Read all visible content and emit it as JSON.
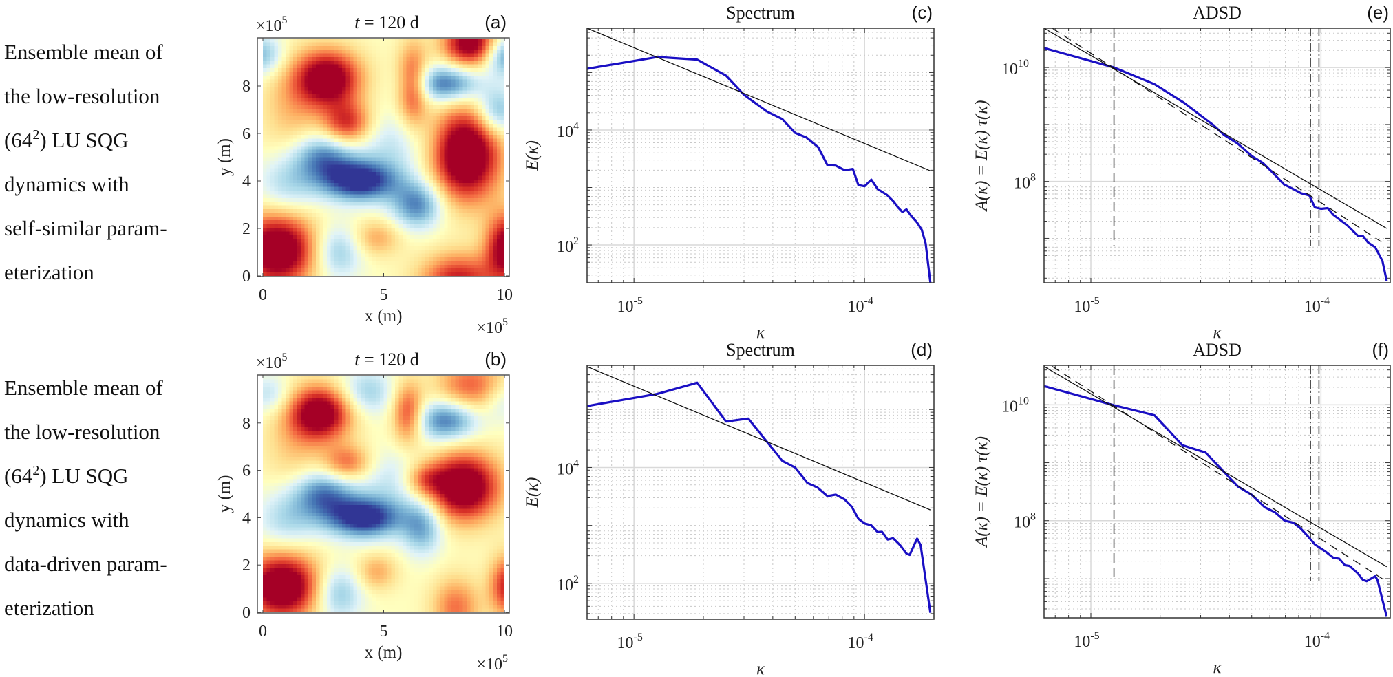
{
  "captions": {
    "top": [
      "Ensemble mean of",
      "the low-resolution",
      "(64|2|) LU SQG",
      "dynamics with",
      "self-similar param-",
      "eterization"
    ],
    "bottom": [
      "Ensemble mean of",
      "the low-resolution",
      "(64|2|) LU SQG",
      "dynamics with",
      "data-driven param-",
      "eterization"
    ]
  },
  "colors": {
    "curve": "#1a0fc4",
    "reference": "#111111",
    "grid_major": "#d9d9d9",
    "grid_minor": "#c8c8c8",
    "frame": "#333333"
  },
  "chart_data": [
    {
      "id": "a",
      "type": "heatmap",
      "panel_letter": "(a)",
      "title": "t = 120 d",
      "title_var": "t",
      "title_rest": " = 120 d",
      "xlabel": "x (m)",
      "ylabel": "y (m)",
      "x_multiplier": "×10^5",
      "y_multiplier": "×10^5",
      "xlim": [
        0,
        10
      ],
      "ylim": [
        0,
        10
      ],
      "xticks": [
        0,
        5,
        10
      ],
      "yticks": [
        0,
        2,
        4,
        6,
        8
      ],
      "grid_resolution": 64,
      "colormap": "RdYlBu (reversed): blue = low, red = high",
      "field_features": [
        {
          "x": 0.6,
          "y": 1.1,
          "amp": 1.5,
          "sx": 1.1,
          "sy": 1.1
        },
        {
          "x": 2.7,
          "y": 8.3,
          "amp": 1.4,
          "sx": 0.95,
          "sy": 0.85
        },
        {
          "x": 8.4,
          "y": 5.1,
          "amp": 1.6,
          "sx": 1.0,
          "sy": 1.35
        },
        {
          "x": 8.6,
          "y": 9.8,
          "amp": 1.3,
          "sx": 0.8,
          "sy": 0.7
        },
        {
          "x": 3.5,
          "y": 6.4,
          "amp": 0.9,
          "sx": 0.7,
          "sy": 0.65
        },
        {
          "x": 6.2,
          "y": 8.0,
          "amp": 0.9,
          "sx": 0.45,
          "sy": 1.2
        },
        {
          "x": 8.1,
          "y": -0.2,
          "amp": 1.0,
          "sx": 1.1,
          "sy": 0.8
        },
        {
          "x": 10.1,
          "y": 1.2,
          "amp": 1.3,
          "sx": 0.6,
          "sy": 1.0
        },
        {
          "x": 4.7,
          "y": 1.6,
          "amp": 0.45,
          "sx": 0.7,
          "sy": 0.55
        },
        {
          "x": 1.2,
          "y": 7.0,
          "amp": 0.35,
          "sx": 0.9,
          "sy": 1.5
        },
        {
          "x": 4.0,
          "y": 4.0,
          "amp": -1.25,
          "sx": 1.1,
          "sy": 0.6
        },
        {
          "x": 2.5,
          "y": 5.0,
          "amp": -0.8,
          "sx": 0.9,
          "sy": 0.7
        },
        {
          "x": 6.4,
          "y": 3.0,
          "amp": -0.85,
          "sx": 0.75,
          "sy": 0.7
        },
        {
          "x": 7.6,
          "y": 8.1,
          "amp": -0.95,
          "sx": 1.0,
          "sy": 0.55
        },
        {
          "x": 10.0,
          "y": 9.3,
          "amp": -0.8,
          "sx": 0.6,
          "sy": 0.6
        },
        {
          "x": 0.0,
          "y": 9.3,
          "amp": -0.6,
          "sx": 0.6,
          "sy": 0.6
        },
        {
          "x": 9.7,
          "y": 6.9,
          "amp": -0.7,
          "sx": 0.6,
          "sy": 0.7
        },
        {
          "x": 3.1,
          "y": 1.0,
          "amp": -0.55,
          "sx": 0.7,
          "sy": 0.8
        },
        {
          "x": 5.5,
          "y": 5.5,
          "amp": -0.35,
          "sx": 1.2,
          "sy": 1.0
        },
        {
          "x": 1.0,
          "y": 3.8,
          "amp": -0.45,
          "sx": 0.9,
          "sy": 0.9
        }
      ]
    },
    {
      "id": "b",
      "type": "heatmap",
      "panel_letter": "(b)",
      "title": "t = 120 d",
      "title_var": "t",
      "title_rest": " = 120 d",
      "xlabel": "x (m)",
      "ylabel": "y (m)",
      "x_multiplier": "×10^5",
      "y_multiplier": "×10^5",
      "xlim": [
        0,
        10
      ],
      "ylim": [
        0,
        10
      ],
      "xticks": [
        0,
        5,
        10
      ],
      "yticks": [
        0,
        2,
        4,
        6,
        8
      ],
      "grid_resolution": 64,
      "colormap": "RdYlBu (reversed): blue = low, red = high",
      "field_features": [
        {
          "x": 0.8,
          "y": 1.1,
          "amp": 1.5,
          "sx": 1.1,
          "sy": 1.0
        },
        {
          "x": 2.4,
          "y": 8.4,
          "amp": 1.35,
          "sx": 0.9,
          "sy": 0.8
        },
        {
          "x": 8.3,
          "y": 5.3,
          "amp": 1.5,
          "sx": 1.05,
          "sy": 1.0
        },
        {
          "x": 6.7,
          "y": 5.6,
          "amp": 0.6,
          "sx": 0.6,
          "sy": 0.5
        },
        {
          "x": 3.5,
          "y": 6.3,
          "amp": 0.7,
          "sx": 0.7,
          "sy": 0.55
        },
        {
          "x": 6.0,
          "y": 8.4,
          "amp": 0.85,
          "sx": 0.45,
          "sy": 0.9
        },
        {
          "x": 8.6,
          "y": 9.6,
          "amp": 0.7,
          "sx": 1.0,
          "sy": 0.8
        },
        {
          "x": 10.1,
          "y": 1.1,
          "amp": 0.95,
          "sx": 0.5,
          "sy": 0.9
        },
        {
          "x": 8.0,
          "y": 0.2,
          "amp": 0.65,
          "sx": 0.7,
          "sy": 0.9
        },
        {
          "x": 4.7,
          "y": 1.7,
          "amp": 0.45,
          "sx": 0.6,
          "sy": 0.55
        },
        {
          "x": 1.3,
          "y": 7.0,
          "amp": 0.3,
          "sx": 0.9,
          "sy": 1.5
        },
        {
          "x": 4.2,
          "y": 4.0,
          "amp": -1.25,
          "sx": 1.1,
          "sy": 0.6
        },
        {
          "x": 2.5,
          "y": 5.0,
          "amp": -0.85,
          "sx": 0.9,
          "sy": 0.7
        },
        {
          "x": 6.6,
          "y": 3.6,
          "amp": -0.7,
          "sx": 0.6,
          "sy": 0.8
        },
        {
          "x": 7.6,
          "y": 8.1,
          "amp": -0.9,
          "sx": 0.9,
          "sy": 0.6
        },
        {
          "x": 3.1,
          "y": 0.8,
          "amp": -0.6,
          "sx": 0.7,
          "sy": 0.8
        },
        {
          "x": 1.0,
          "y": 3.9,
          "amp": -0.45,
          "sx": 0.9,
          "sy": 0.9
        },
        {
          "x": 0.3,
          "y": 9.2,
          "amp": -0.4,
          "sx": 0.6,
          "sy": 0.6
        },
        {
          "x": 4.3,
          "y": 9.3,
          "amp": -0.5,
          "sx": 0.8,
          "sy": 0.7
        },
        {
          "x": 9.9,
          "y": 8.9,
          "amp": -0.3,
          "sx": 0.5,
          "sy": 0.6
        },
        {
          "x": 5.5,
          "y": 5.6,
          "amp": -0.35,
          "sx": 1.1,
          "sy": 0.9
        }
      ]
    },
    {
      "id": "c",
      "type": "line",
      "panel_letter": "(c)",
      "title": "Spectrum",
      "xlabel": "κ",
      "ylabel": "E(κ)",
      "xscale": "log",
      "yscale": "log",
      "xlim": [
        6.26e-06,
        0.0002
      ],
      "ylim": [
        22,
        590000.0
      ],
      "xticks": [
        {
          "value": 1e-05,
          "base": "10",
          "exp": "-5"
        },
        {
          "value": 0.0001,
          "base": "10",
          "exp": "-4"
        }
      ],
      "yticks": [
        {
          "value": 100,
          "base": "10",
          "exp": "2"
        },
        {
          "value": 10000,
          "base": "10",
          "exp": "4"
        }
      ],
      "grid": true,
      "series": [
        {
          "name": "spectrum",
          "style": "solid-thick-blue",
          "x": [
            6.26e-06,
            1.26e-05,
            1.88e-05,
            2.51e-05,
            3e-05,
            3.77e-05,
            4.4e-05,
            5e-05,
            5.6e-05,
            6.3e-05,
            6.9e-05,
            7.5e-05,
            8.2e-05,
            8.9e-05,
            9.4e-05,
            0.0001,
            0.000107,
            0.000114,
            0.000125,
            0.000133,
            0.00014,
            0.000146,
            0.000152,
            0.000159,
            0.000169,
            0.000177,
            0.000184,
            0.000193
          ],
          "y": [
            116000.0,
            186000.0,
            168000.0,
            88000.0,
            41000.0,
            21000.0,
            15500.0,
            8900.0,
            7400.0,
            5000.0,
            2450.0,
            2400.0,
            2000.0,
            2100.0,
            1100.0,
            1050.0,
            1370.0,
            940,
            745,
            585,
            445,
            375,
            415,
            325,
            245,
            185,
            107,
            22
          ]
        },
        {
          "name": "reference slope",
          "style": "solid-thin-black",
          "x": [
            6.26e-06,
            0.000193
          ],
          "y": [
            590000.0,
            1950.0
          ]
        }
      ]
    },
    {
      "id": "d",
      "type": "line",
      "panel_letter": "(d)",
      "title": "Spectrum",
      "xlabel": "κ",
      "ylabel": "E(κ)",
      "xscale": "log",
      "yscale": "log",
      "xlim": [
        6.26e-06,
        0.0002
      ],
      "ylim": [
        24,
        580000.0
      ],
      "xticks": [
        {
          "value": 1e-05,
          "base": "10",
          "exp": "-5"
        },
        {
          "value": 0.0001,
          "base": "10",
          "exp": "-4"
        }
      ],
      "yticks": [
        {
          "value": 100,
          "base": "10",
          "exp": "2"
        },
        {
          "value": 10000,
          "base": "10",
          "exp": "4"
        }
      ],
      "grid": true,
      "series": [
        {
          "name": "spectrum",
          "style": "solid-thick-blue",
          "x": [
            6.26e-06,
            1.26e-05,
            1.88e-05,
            2.51e-05,
            3.13e-05,
            4.4e-05,
            5e-05,
            5.65e-05,
            6.25e-05,
            6.9e-05,
            7.5e-05,
            8.2e-05,
            8.8e-05,
            9.4e-05,
            0.0001,
            0.000107,
            0.000114,
            0.000119,
            0.000126,
            0.000133,
            0.000143,
            0.000152,
            0.000157,
            0.000169,
            0.000175,
            0.000193
          ],
          "y": [
            115000.0,
            186000.0,
            290000.0,
            62000.0,
            70000.0,
            13000.0,
            10000.0,
            5400.0,
            4500.0,
            3200.0,
            3400.0,
            2800.0,
            2100.0,
            1300.0,
            1080.0,
            1000.0,
            766,
            775,
            570,
            600,
            450,
            325,
            310,
            590,
            460,
            31
          ]
        },
        {
          "name": "reference slope",
          "style": "solid-thin-black",
          "x": [
            6.26e-06,
            0.000193
          ],
          "y": [
            550000.0,
            1850.0
          ]
        }
      ]
    },
    {
      "id": "e",
      "type": "line",
      "panel_letter": "(e)",
      "title": "ADSD",
      "xlabel": "κ",
      "ylabel": "A(κ) = E(κ) τ(κ)",
      "xscale": "log",
      "yscale": "log",
      "xlim": [
        6.26e-06,
        0.0002
      ],
      "ylim": [
        1660000.0,
        49000000000.0
      ],
      "xticks": [
        {
          "value": 1e-05,
          "base": "10",
          "exp": "-5"
        },
        {
          "value": 0.0001,
          "base": "10",
          "exp": "-4"
        }
      ],
      "yticks": [
        {
          "value": 100000000.0,
          "base": "10",
          "exp": "8"
        },
        {
          "value": 10000000000.0,
          "base": "10",
          "exp": "10"
        }
      ],
      "grid": true,
      "vertical_markers": [
        {
          "x": 1.26e-05,
          "style": "dashed",
          "y_from": 7400000.0
        },
        {
          "x": 9e-05,
          "style": "dash-dot",
          "y_from": 7400000.0
        },
        {
          "x": 9.8e-05,
          "style": "dash-dot",
          "y_from": 7400000.0
        }
      ],
      "series": [
        {
          "name": "ADSD",
          "style": "solid-thick-blue",
          "x": [
            6.26e-06,
            1.26e-05,
            1.89e-05,
            2.54e-05,
            3.4e-05,
            3.8e-05,
            4.35e-05,
            5e-05,
            5.6e-05,
            6.2e-05,
            6.9e-05,
            7.5e-05,
            8.2e-05,
            8.9e-05,
            9.4e-05,
            0.0001,
            0.000107,
            0.000113,
            0.00013,
            0.000145,
            0.000152,
            0.00016,
            0.000172,
            0.000185,
            0.000193
          ],
          "y": [
            22000000000.0,
            10000000000.0,
            5100000000.0,
            2400000000.0,
            980000000.0,
            650000000.0,
            460000000.0,
            280000000.0,
            210000000.0,
            140000000.0,
            89000000.0,
            75000000.0,
            62000000.0,
            57000000.0,
            35000000.0,
            33000000.0,
            34000000.0,
            26000000.0,
            17000000.0,
            11000000.0,
            11000000.0,
            8500000.0,
            7000000.0,
            4000000.0,
            1800000.0
          ]
        },
        {
          "name": "reference slope (solid)",
          "style": "solid-thin-black",
          "x": [
            6.26e-06,
            0.000193
          ],
          "y": [
            49000000000.0,
            15000000.0
          ]
        },
        {
          "name": "reference slope (dashed)",
          "style": "dashed-thin-black",
          "x": [
            6.8e-06,
            0.000183
          ],
          "y": [
            49000000000.0,
            8700000.0
          ]
        }
      ]
    },
    {
      "id": "f",
      "type": "line",
      "panel_letter": "(f)",
      "title": "ADSD",
      "xlabel": "κ",
      "ylabel": "A(κ) = E(κ) τ(κ)",
      "xscale": "log",
      "yscale": "log",
      "xlim": [
        6.26e-06,
        0.0002
      ],
      "ylim": [
        2100000.0,
        48000000000.0
      ],
      "xticks": [
        {
          "value": 1e-05,
          "base": "10",
          "exp": "-5"
        },
        {
          "value": 0.0001,
          "base": "10",
          "exp": "-4"
        }
      ],
      "yticks": [
        {
          "value": 100000000.0,
          "base": "10",
          "exp": "8"
        },
        {
          "value": 10000000000.0,
          "base": "10",
          "exp": "10"
        }
      ],
      "grid": true,
      "vertical_markers": [
        {
          "x": 1.26e-05,
          "style": "dashed",
          "y_from": 9000000.0
        },
        {
          "x": 9e-05,
          "style": "dash-dot",
          "y_from": 9000000.0
        },
        {
          "x": 9.8e-05,
          "style": "dash-dot",
          "y_from": 9000000.0
        }
      ],
      "series": [
        {
          "name": "ADSD",
          "style": "solid-thick-blue",
          "x": [
            6.26e-06,
            1.26e-05,
            1.89e-05,
            2.5e-05,
            3.15e-05,
            4.35e-05,
            5e-05,
            5.7e-05,
            6.3e-05,
            6.95e-05,
            7.6e-05,
            8.2e-05,
            8.8e-05,
            9.4e-05,
            0.000105,
            0.000113,
            0.00012,
            0.000127,
            0.000133,
            0.000144,
            0.000152,
            0.000158,
            0.000172,
            0.000176,
            0.000193
          ],
          "y": [
            21000000000.0,
            9800000000.0,
            6600000000.0,
            2000000000.0,
            1500000000.0,
            390000000.0,
            280000000.0,
            170000000.0,
            140000000.0,
            100000000.0,
            92000000.0,
            72000000.0,
            53000000.0,
            39000000.0,
            29000000.0,
            23000000.0,
            22000000.0,
            17000000.0,
            16500000.0,
            12500000.0,
            9500000.0,
            9000000.0,
            11000000.0,
            9500000.0,
            2200000.0
          ]
        },
        {
          "name": "reference slope (solid)",
          "style": "solid-thin-black",
          "x": [
            6.26e-06,
            0.000193
          ],
          "y": [
            46000000000.0,
            16000000.0
          ]
        },
        {
          "name": "reference slope (dashed)",
          "style": "dashed-thin-black",
          "x": [
            6.8e-06,
            0.000193
          ],
          "y": [
            46000000000.0,
            8900000.0
          ]
        }
      ]
    }
  ]
}
